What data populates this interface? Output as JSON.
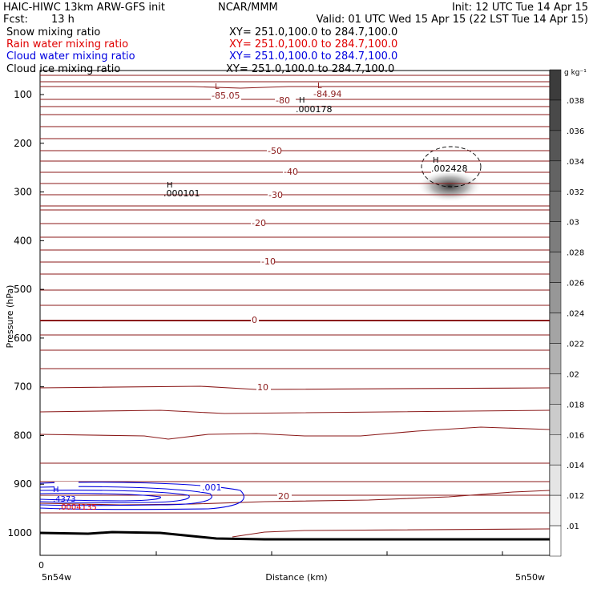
{
  "header": {
    "title_left": "HAIC-HIWC 13km ARW-GFS init",
    "title_mid": "NCAR/MMM",
    "init": "Init: 12 UTC Tue 14 Apr 15",
    "fcst_label": "Fcst:",
    "fcst_value": "13 h",
    "valid": "Valid: 01 UTC Wed 15 Apr 15 (22 LST Tue 14 Apr 15)"
  },
  "fields": [
    {
      "name": "Snow mixing ratio",
      "xy": "XY= 251.0,100.0 to 284.7,100.0",
      "color": "#000000"
    },
    {
      "name": "Rain water mixing ratio",
      "xy": "XY= 251.0,100.0 to 284.7,100.0",
      "color": "#e00000"
    },
    {
      "name": "Cloud water mixing ratio",
      "xy": "XY= 251.0,100.0 to 284.7,100.0",
      "color": "#0000e0"
    },
    {
      "name": "Cloud ice mixing ratio",
      "xy": "XY= 251.0,100.0 to 284.7,100.0",
      "color": "#000000"
    }
  ],
  "chart_data": {
    "type": "contour-cross-section",
    "xlabel": "Distance (km)",
    "ylabel": "Pressure (hPa)",
    "x_start_value": "0",
    "x_endpoints": [
      "5n54w",
      "5n50w"
    ],
    "y_ticks": [
      100,
      200,
      300,
      400,
      500,
      600,
      700,
      800,
      900,
      1000
    ],
    "temperature_labels": [
      "-85.05",
      "-84.94",
      "-80",
      "-50",
      "-40",
      "-30",
      "-20",
      "-10",
      "0",
      "10",
      "20"
    ],
    "extrema_labels": [
      {
        "kind": "L",
        "value": "-85.05"
      },
      {
        "kind": "L",
        "value": "-84.94"
      },
      {
        "kind": "H",
        "value": ".000178"
      },
      {
        "kind": "H",
        "value": ".002428"
      },
      {
        "kind": "H",
        "value": ".000101"
      },
      {
        "kind": "H",
        "value": ".4373"
      },
      {
        "kind": "",
        "value": ".0004135"
      }
    ],
    "cloud_water_label": ".001",
    "colorbar": {
      "unit_label": "g kg⁻¹",
      "ticks": [
        ".01",
        ".012",
        ".014",
        ".016",
        ".018",
        ".02",
        ".022",
        ".024",
        ".026",
        ".028",
        ".03",
        ".032",
        ".034",
        ".036",
        ".038"
      ]
    }
  }
}
